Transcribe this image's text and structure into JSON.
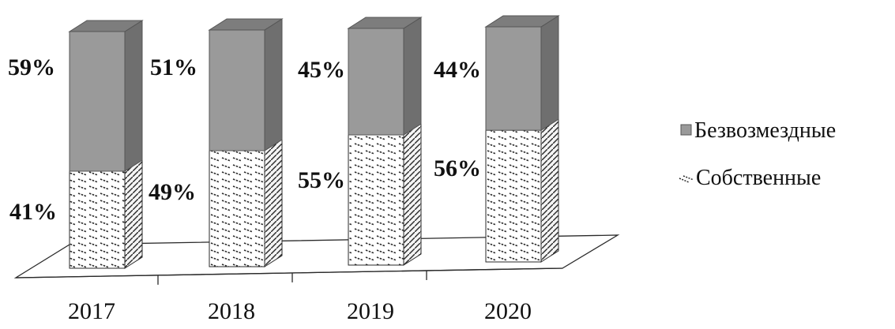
{
  "chart_data": {
    "type": "bar",
    "stacked": true,
    "percent": true,
    "three_d": true,
    "categories": [
      "2017",
      "2018",
      "2019",
      "2020"
    ],
    "series": [
      {
        "name": "Собственные",
        "values": [
          41,
          49,
          55,
          56
        ],
        "labels": [
          "41%",
          "49%",
          "55%",
          "56%"
        ],
        "pattern": "hatched"
      },
      {
        "name": "Безвозмездные",
        "values": [
          59,
          51,
          45,
          44
        ],
        "labels": [
          "59%",
          "51%",
          "45%",
          "44%"
        ],
        "color": "#9a9a9a"
      }
    ],
    "ylim": [
      0,
      100
    ],
    "grid": false,
    "legend_position": "right"
  }
}
